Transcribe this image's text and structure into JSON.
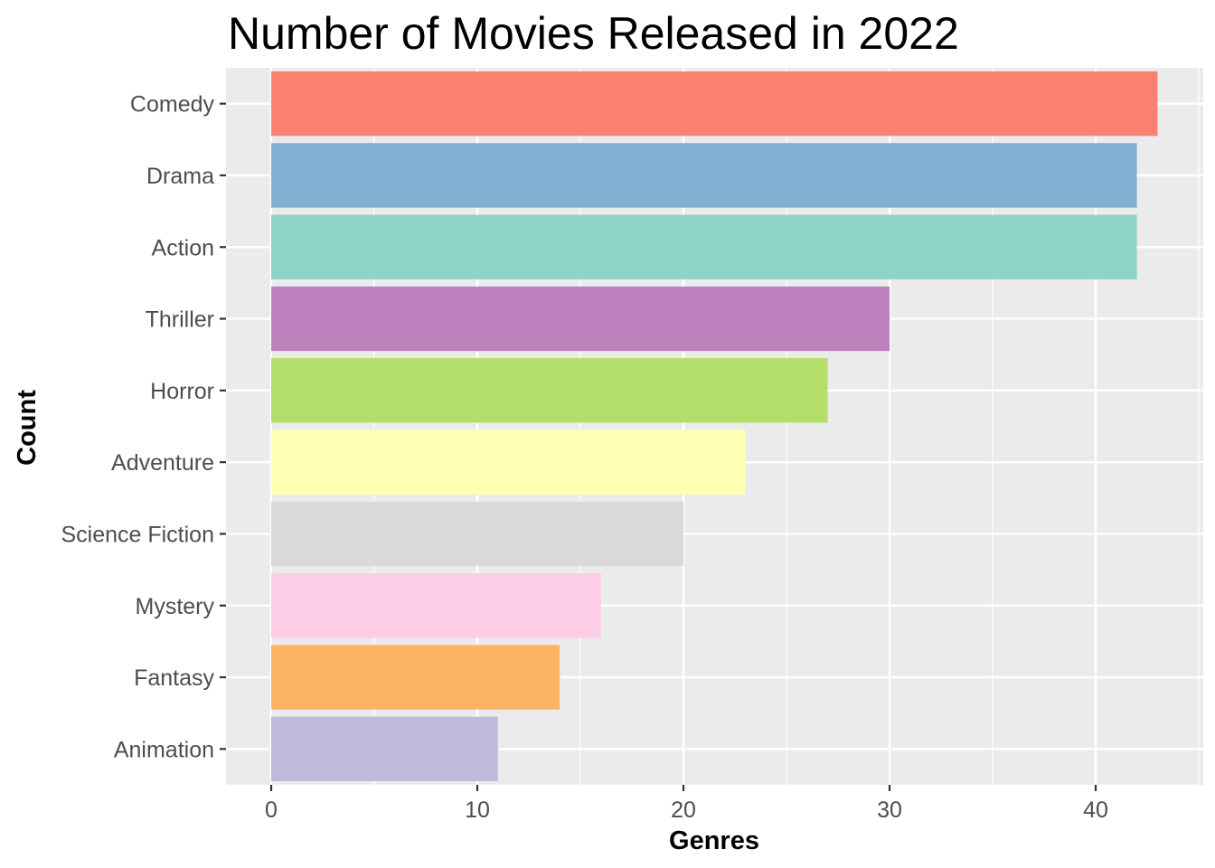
{
  "chart_data": {
    "type": "bar",
    "orientation": "horizontal",
    "title": "Number of Movies Released in 2022",
    "xlabel": "Genres",
    "ylabel": "Count",
    "categories": [
      "Comedy",
      "Drama",
      "Action",
      "Thriller",
      "Horror",
      "Adventure",
      "Science Fiction",
      "Mystery",
      "Fantasy",
      "Animation"
    ],
    "values": [
      43,
      42,
      42,
      30,
      27,
      23,
      20,
      16,
      14,
      11
    ],
    "colors": [
      "#FB8072",
      "#80B1D3",
      "#8DD3C7",
      "#BC80BD",
      "#B3DE69",
      "#FFFFB3",
      "#D9D9D9",
      "#FCCDE5",
      "#FDB462",
      "#BEBADA"
    ],
    "xlim": [
      0,
      45
    ],
    "x_ticks": [
      0,
      10,
      20,
      30,
      40
    ],
    "x_tick_labels": [
      "0",
      "10",
      "20",
      "30",
      "40"
    ],
    "grid": true,
    "legend": "none",
    "panel_background": "#EBEBEB",
    "grid_color": "#FFFFFF"
  }
}
